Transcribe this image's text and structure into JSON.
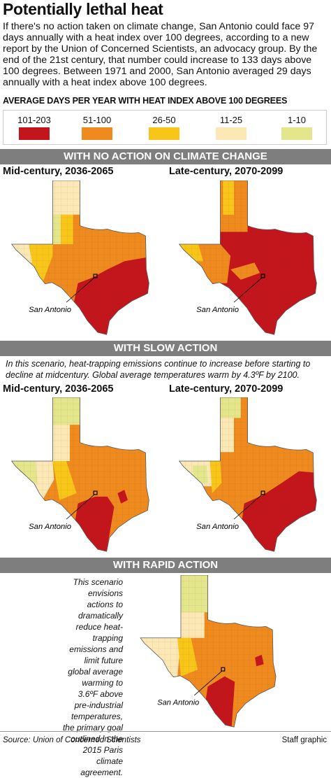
{
  "header": {
    "title": "Potentially lethal heat",
    "intro": "If there's no action taken on climate change, San Antonio could face 97 days annually with a heat index over 100 degrees, according to a new report by the Union of Concerned Scientists, an advocacy group. By the end of the 21st century, that number could increase to 133 days above 100 degrees. Between 1971 and 2000, San Antonio averaged 29 days annually with a heat index above 100 degrees."
  },
  "legend": {
    "title": "AVERAGE DAYS PER YEAR WITH HEAT INDEX ABOVE 100 DEGREES",
    "items": [
      {
        "label": "101-203",
        "color": "#c3161c"
      },
      {
        "label": "51-100",
        "color": "#ef8a1f"
      },
      {
        "label": "26-50",
        "color": "#f8c619"
      },
      {
        "label": "11-25",
        "color": "#fbe8b5"
      },
      {
        "label": "1-10",
        "color": "#e4e68c"
      }
    ]
  },
  "sections": [
    {
      "heading": "WITH NO ACTION ON CLIMATE CHANGE",
      "maps": [
        {
          "title": "Mid-century, 2036-2065",
          "city_label": "San Antonio"
        },
        {
          "title": "Late-century, 2070-2099",
          "city_label": "San Antonio"
        }
      ]
    },
    {
      "heading": "WITH SLOW ACTION",
      "description": "In this scenario, heat-trapping emissions continue to increase before starting to decline at midcentury. Global average temperatures warm by 4.3ºF by 2100.",
      "maps": [
        {
          "title": "Mid-century, 2036-2065",
          "city_label": "San Antonio"
        },
        {
          "title": "Late-century, 2070-2099",
          "city_label": "San Antonio"
        }
      ]
    },
    {
      "heading": "WITH RAPID ACTION",
      "description": "This scenario envisions actions to dramatically reduce heat-trapping emissions and limit future global average warming to 3.6ºF above pre-industrial temperatures, the primary goal outlined in the 2015 Paris climate agreement.",
      "maps": [
        {
          "city_label": "San Antonio"
        }
      ]
    }
  ],
  "footer": {
    "source": "Source: Union of Concerned Scientists",
    "credit": "Staff graphic"
  }
}
